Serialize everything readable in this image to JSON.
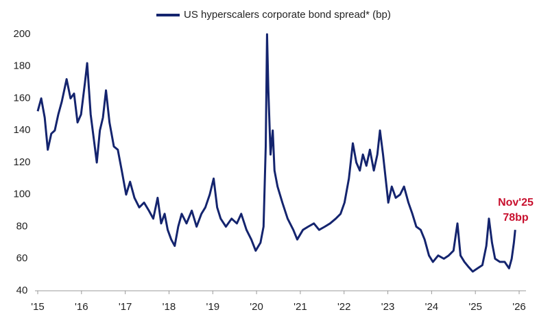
{
  "chart_data": {
    "type": "line",
    "x": [
      2015.0,
      2015.08,
      2015.16,
      2015.23,
      2015.31,
      2015.39,
      2015.47,
      2015.55,
      2015.66,
      2015.75,
      2015.83,
      2015.91,
      2015.99,
      2016.08,
      2016.13,
      2016.21,
      2016.28,
      2016.35,
      2016.42,
      2016.49,
      2016.56,
      2016.64,
      2016.74,
      2016.83,
      2016.92,
      2017.02,
      2017.11,
      2017.21,
      2017.32,
      2017.43,
      2017.54,
      2017.64,
      2017.74,
      2017.82,
      2017.9,
      2017.97,
      2018.05,
      2018.13,
      2018.21,
      2018.29,
      2018.4,
      2018.52,
      2018.63,
      2018.74,
      2018.83,
      2018.93,
      2019.02,
      2019.1,
      2019.18,
      2019.3,
      2019.43,
      2019.55,
      2019.65,
      2019.77,
      2019.88,
      2019.98,
      2020.09,
      2020.16,
      2020.21,
      2020.24,
      2020.27,
      2020.32,
      2020.37,
      2020.41,
      2020.48,
      2020.59,
      2020.71,
      2020.84,
      2020.93,
      2021.06,
      2021.18,
      2021.31,
      2021.43,
      2021.56,
      2021.68,
      2021.81,
      2021.92,
      2022.01,
      2022.11,
      2022.2,
      2022.28,
      2022.36,
      2022.43,
      2022.51,
      2022.59,
      2022.68,
      2022.76,
      2022.82,
      2022.89,
      2022.95,
      2023.01,
      2023.09,
      2023.18,
      2023.28,
      2023.37,
      2023.47,
      2023.56,
      2023.65,
      2023.75,
      2023.84,
      2023.94,
      2024.03,
      2024.15,
      2024.28,
      2024.39,
      2024.5,
      2024.59,
      2024.66,
      2024.75,
      2024.84,
      2024.94,
      2025.05,
      2025.16,
      2025.25,
      2025.31,
      2025.38,
      2025.45,
      2025.56,
      2025.67,
      2025.77,
      2025.83,
      2025.88,
      2025.91
    ],
    "series": [
      {
        "name": "US hyperscalers corporate bond spread* (bp)",
        "color": "#14246e",
        "values": [
          152,
          160,
          148,
          128,
          138,
          140,
          150,
          158,
          172,
          160,
          163,
          145,
          150,
          170,
          182,
          150,
          135,
          120,
          140,
          148,
          165,
          145,
          130,
          128,
          115,
          100,
          108,
          98,
          92,
          95,
          90,
          85,
          98,
          82,
          88,
          78,
          72,
          68,
          80,
          88,
          82,
          90,
          80,
          88,
          92,
          100,
          110,
          92,
          85,
          80,
          85,
          82,
          88,
          78,
          72,
          65,
          70,
          80,
          130,
          200,
          165,
          125,
          140,
          115,
          105,
          95,
          85,
          78,
          72,
          78,
          80,
          82,
          78,
          80,
          82,
          85,
          88,
          95,
          110,
          132,
          120,
          115,
          125,
          118,
          128,
          115,
          125,
          140,
          125,
          110,
          95,
          105,
          98,
          100,
          105,
          95,
          88,
          80,
          78,
          72,
          62,
          58,
          62,
          60,
          62,
          65,
          82,
          62,
          58,
          55,
          52,
          54,
          56,
          68,
          85,
          70,
          60,
          58,
          58,
          54,
          60,
          70,
          78
        ]
      }
    ],
    "xlim": [
      2015,
      2026
    ],
    "xticks": [
      {
        "value": 2015,
        "label": "'15"
      },
      {
        "value": 2016,
        "label": "'16"
      },
      {
        "value": 2017,
        "label": "'17"
      },
      {
        "value": 2018,
        "label": "'18"
      },
      {
        "value": 2019,
        "label": "'19"
      },
      {
        "value": 2020,
        "label": "'20"
      },
      {
        "value": 2021,
        "label": "'21"
      },
      {
        "value": 2022,
        "label": "'22"
      },
      {
        "value": 2023,
        "label": "'23"
      },
      {
        "value": 2024,
        "label": "'24"
      },
      {
        "value": 2025,
        "label": "'25"
      },
      {
        "value": 2026,
        "label": "'26"
      }
    ],
    "ylim": [
      40,
      200
    ],
    "yticks": [
      40,
      60,
      80,
      100,
      120,
      140,
      160,
      180,
      200
    ],
    "annotations": [
      "Nov'25",
      "78bp"
    ],
    "grid": false
  }
}
